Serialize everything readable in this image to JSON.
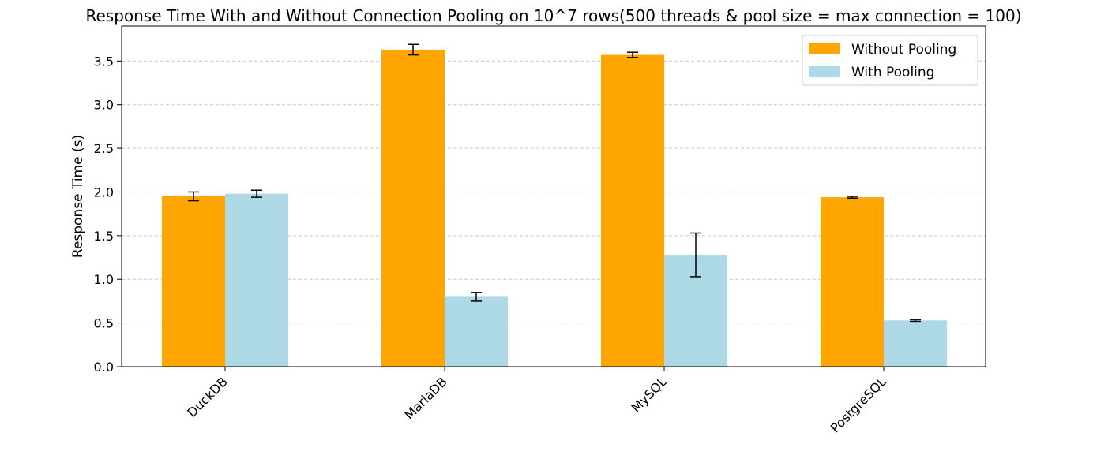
{
  "chart_data": {
    "type": "bar",
    "title": "Response Time With and Without Connection Pooling on 10^7 rows(500 threads & pool size = max connection = 100)",
    "y_label": "Response Time (s)",
    "categories": [
      "DuckDB",
      "MariaDB",
      "MySQL",
      "PostgreSQL"
    ],
    "series": [
      {
        "name": "Without Pooling",
        "color": "#ffa500",
        "values": [
          1.95,
          3.63,
          3.57,
          1.94
        ],
        "errors": [
          0.05,
          0.06,
          0.03,
          0.01
        ]
      },
      {
        "name": "With Pooling",
        "color": "#add8e6",
        "values": [
          1.98,
          0.8,
          1.28,
          0.53
        ],
        "errors": [
          0.04,
          0.05,
          0.25,
          0.01
        ]
      }
    ],
    "ylim": [
      0,
      3.9
    ],
    "yticks": [
      {
        "value": 0,
        "label": "0.0"
      },
      {
        "value": 0.5,
        "label": "0.5"
      },
      {
        "value": 1,
        "label": "1.0"
      },
      {
        "value": 1.5,
        "label": "1.5"
      },
      {
        "value": 2,
        "label": "2.0"
      },
      {
        "value": 2.5,
        "label": "2.5"
      },
      {
        "value": 3,
        "label": "3.0"
      },
      {
        "value": 3.5,
        "label": "3.5"
      }
    ],
    "grid": true,
    "legend": "upper right"
  }
}
